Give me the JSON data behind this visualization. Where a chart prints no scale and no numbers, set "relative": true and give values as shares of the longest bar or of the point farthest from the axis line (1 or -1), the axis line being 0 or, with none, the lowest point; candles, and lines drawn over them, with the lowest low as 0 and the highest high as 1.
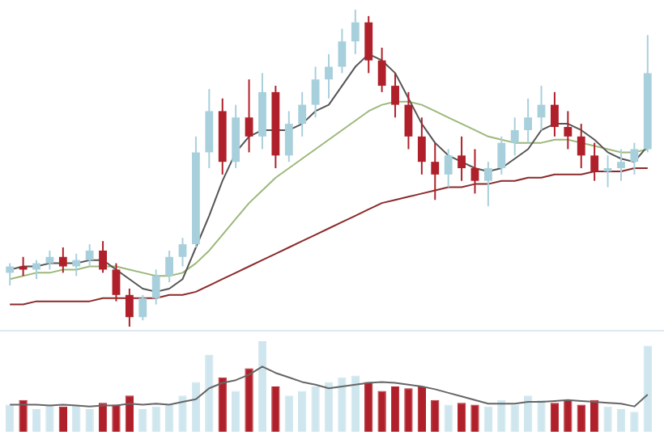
{
  "chart_data": [
    {
      "type": "candlestick",
      "relative": true,
      "tick_labels": false,
      "categories": [
        null,
        null,
        null,
        null,
        null,
        null,
        null,
        null,
        null,
        null,
        null,
        null,
        null,
        null,
        null,
        null,
        null,
        null,
        null,
        null,
        null,
        null,
        null,
        null,
        null,
        null,
        null,
        null,
        null,
        null,
        null,
        null,
        null,
        null,
        null,
        null,
        null,
        null,
        null,
        null,
        null,
        null,
        null,
        null,
        null,
        null,
        null,
        null,
        null
      ],
      "ohlc": [
        [
          0.17,
          0.2,
          0.13,
          0.19
        ],
        [
          0.19,
          0.22,
          0.16,
          0.18
        ],
        [
          0.18,
          0.21,
          0.15,
          0.2
        ],
        [
          0.2,
          0.24,
          0.18,
          0.22
        ],
        [
          0.22,
          0.25,
          0.17,
          0.19
        ],
        [
          0.19,
          0.23,
          0.16,
          0.21
        ],
        [
          0.21,
          0.26,
          0.19,
          0.24
        ],
        [
          0.24,
          0.27,
          0.17,
          0.18
        ],
        [
          0.18,
          0.2,
          0.08,
          0.1
        ],
        [
          0.1,
          0.12,
          0.0,
          0.03
        ],
        [
          0.03,
          0.1,
          0.02,
          0.09
        ],
        [
          0.09,
          0.18,
          0.07,
          0.16
        ],
        [
          0.16,
          0.24,
          0.14,
          0.22
        ],
        [
          0.22,
          0.28,
          0.19,
          0.26
        ],
        [
          0.26,
          0.6,
          0.25,
          0.55
        ],
        [
          0.55,
          0.75,
          0.5,
          0.68
        ],
        [
          0.68,
          0.72,
          0.48,
          0.52
        ],
        [
          0.52,
          0.7,
          0.5,
          0.66
        ],
        [
          0.66,
          0.78,
          0.55,
          0.6
        ],
        [
          0.6,
          0.8,
          0.56,
          0.74
        ],
        [
          0.74,
          0.76,
          0.5,
          0.54
        ],
        [
          0.54,
          0.68,
          0.52,
          0.64
        ],
        [
          0.64,
          0.74,
          0.6,
          0.7
        ],
        [
          0.7,
          0.82,
          0.66,
          0.78
        ],
        [
          0.78,
          0.86,
          0.72,
          0.82
        ],
        [
          0.82,
          0.94,
          0.8,
          0.9
        ],
        [
          0.9,
          1.0,
          0.86,
          0.96
        ],
        [
          0.96,
          0.98,
          0.8,
          0.84
        ],
        [
          0.84,
          0.88,
          0.74,
          0.76
        ],
        [
          0.76,
          0.8,
          0.66,
          0.7
        ],
        [
          0.7,
          0.74,
          0.56,
          0.6
        ],
        [
          0.6,
          0.66,
          0.48,
          0.52
        ],
        [
          0.52,
          0.58,
          0.4,
          0.48
        ],
        [
          0.48,
          0.56,
          0.44,
          0.54
        ],
        [
          0.54,
          0.6,
          0.46,
          0.5
        ],
        [
          0.5,
          0.56,
          0.42,
          0.46
        ],
        [
          0.46,
          0.52,
          0.38,
          0.5
        ],
        [
          0.5,
          0.6,
          0.48,
          0.58
        ],
        [
          0.58,
          0.66,
          0.54,
          0.62
        ],
        [
          0.62,
          0.72,
          0.58,
          0.66
        ],
        [
          0.66,
          0.76,
          0.62,
          0.7
        ],
        [
          0.7,
          0.74,
          0.6,
          0.63
        ],
        [
          0.63,
          0.68,
          0.56,
          0.6
        ],
        [
          0.6,
          0.64,
          0.5,
          0.54
        ],
        [
          0.54,
          0.58,
          0.46,
          0.49
        ],
        [
          0.49,
          0.54,
          0.44,
          0.5
        ],
        [
          0.5,
          0.56,
          0.46,
          0.52
        ],
        [
          0.52,
          0.58,
          0.48,
          0.56
        ],
        [
          0.56,
          0.92,
          0.55,
          0.8
        ]
      ],
      "colors": [
        "#a8d0dc",
        "#b0202a",
        "#a8d0dc",
        "#a8d0dc",
        "#b0202a",
        "#a8d0dc",
        "#a8d0dc",
        "#b0202a",
        "#b0202a",
        "#b0202a",
        "#a8d0dc",
        "#a8d0dc",
        "#a8d0dc",
        "#a8d0dc",
        "#a8d0dc",
        "#a8d0dc",
        "#b0202a",
        "#a8d0dc",
        "#b0202a",
        "#a8d0dc",
        "#b0202a",
        "#a8d0dc",
        "#a8d0dc",
        "#a8d0dc",
        "#a8d0dc",
        "#a8d0dc",
        "#a8d0dc",
        "#b0202a",
        "#b0202a",
        "#b0202a",
        "#b0202a",
        "#b0202a",
        "#b0202a",
        "#a8d0dc",
        "#b0202a",
        "#b0202a",
        "#a8d0dc",
        "#a8d0dc",
        "#a8d0dc",
        "#a8d0dc",
        "#a8d0dc",
        "#b0202a",
        "#b0202a",
        "#b0202a",
        "#b0202a",
        "#a8d0dc",
        "#a8d0dc",
        "#a8d0dc",
        "#a8d0dc"
      ],
      "series": [
        {
          "type": "line",
          "color": "#555555",
          "values": [
            0.18,
            0.19,
            0.19,
            0.2,
            0.2,
            0.2,
            0.21,
            0.21,
            0.18,
            0.15,
            0.12,
            0.11,
            0.12,
            0.15,
            0.25,
            0.35,
            0.46,
            0.55,
            0.6,
            0.62,
            0.62,
            0.62,
            0.64,
            0.68,
            0.7,
            0.76,
            0.82,
            0.86,
            0.84,
            0.8,
            0.72,
            0.64,
            0.58,
            0.54,
            0.52,
            0.5,
            0.49,
            0.5,
            0.53,
            0.56,
            0.62,
            0.64,
            0.64,
            0.62,
            0.59,
            0.55,
            0.53,
            0.52,
            0.57
          ]
        },
        {
          "type": "line",
          "color": "#9cb87a",
          "values": [
            0.15,
            0.16,
            0.17,
            0.17,
            0.18,
            0.18,
            0.19,
            0.19,
            0.19,
            0.18,
            0.17,
            0.16,
            0.16,
            0.17,
            0.2,
            0.24,
            0.29,
            0.34,
            0.39,
            0.43,
            0.47,
            0.5,
            0.53,
            0.56,
            0.59,
            0.62,
            0.65,
            0.68,
            0.7,
            0.71,
            0.71,
            0.7,
            0.68,
            0.66,
            0.64,
            0.62,
            0.6,
            0.59,
            0.58,
            0.58,
            0.58,
            0.59,
            0.59,
            0.58,
            0.57,
            0.56,
            0.55,
            0.55,
            0.56
          ]
        },
        {
          "type": "line",
          "color": "#8b2a2a",
          "values": [
            0.07,
            0.07,
            0.08,
            0.08,
            0.08,
            0.08,
            0.08,
            0.09,
            0.09,
            0.09,
            0.09,
            0.09,
            0.1,
            0.1,
            0.11,
            0.13,
            0.15,
            0.17,
            0.19,
            0.21,
            0.23,
            0.25,
            0.27,
            0.29,
            0.31,
            0.33,
            0.35,
            0.37,
            0.39,
            0.4,
            0.41,
            0.42,
            0.43,
            0.44,
            0.44,
            0.45,
            0.45,
            0.46,
            0.46,
            0.47,
            0.47,
            0.48,
            0.48,
            0.48,
            0.49,
            0.49,
            0.49,
            0.5,
            0.5
          ]
        }
      ]
    },
    {
      "type": "bar",
      "relative": true,
      "tick_labels": false,
      "categories": [
        null,
        null,
        null,
        null,
        null,
        null,
        null,
        null,
        null,
        null,
        null,
        null,
        null,
        null,
        null,
        null,
        null,
        null,
        null,
        null,
        null,
        null,
        null,
        null,
        null,
        null,
        null,
        null,
        null,
        null,
        null,
        null,
        null,
        null,
        null,
        null,
        null,
        null,
        null,
        null,
        null,
        null,
        null,
        null,
        null,
        null,
        null,
        null,
        null
      ],
      "series": [
        {
          "type": "bar",
          "values": [
            0.3,
            0.35,
            0.25,
            0.3,
            0.28,
            0.3,
            0.25,
            0.32,
            0.3,
            0.4,
            0.25,
            0.28,
            0.3,
            0.4,
            0.55,
            0.85,
            0.6,
            0.45,
            0.7,
            1.0,
            0.5,
            0.4,
            0.45,
            0.5,
            0.55,
            0.6,
            0.62,
            0.55,
            0.45,
            0.5,
            0.48,
            0.5,
            0.35,
            0.3,
            0.32,
            0.3,
            0.28,
            0.35,
            0.3,
            0.4,
            0.35,
            0.32,
            0.35,
            0.3,
            0.35,
            0.28,
            0.25,
            0.22,
            0.95
          ],
          "colors": [
            "#cfe6ee",
            "#b0202a",
            "#cfe6ee",
            "#cfe6ee",
            "#b0202a",
            "#cfe6ee",
            "#cfe6ee",
            "#b0202a",
            "#b0202a",
            "#b0202a",
            "#cfe6ee",
            "#cfe6ee",
            "#cfe6ee",
            "#cfe6ee",
            "#cfe6ee",
            "#cfe6ee",
            "#b0202a",
            "#cfe6ee",
            "#b0202a",
            "#cfe6ee",
            "#b0202a",
            "#cfe6ee",
            "#cfe6ee",
            "#cfe6ee",
            "#cfe6ee",
            "#cfe6ee",
            "#cfe6ee",
            "#b0202a",
            "#b0202a",
            "#b0202a",
            "#b0202a",
            "#b0202a",
            "#b0202a",
            "#cfe6ee",
            "#b0202a",
            "#b0202a",
            "#cfe6ee",
            "#cfe6ee",
            "#cfe6ee",
            "#cfe6ee",
            "#cfe6ee",
            "#b0202a",
            "#b0202a",
            "#b0202a",
            "#b0202a",
            "#cfe6ee",
            "#cfe6ee",
            "#cfe6ee",
            "#cfe6ee"
          ]
        },
        {
          "type": "line",
          "color": "#666666",
          "values": [
            0.3,
            0.3,
            0.3,
            0.29,
            0.3,
            0.29,
            0.28,
            0.29,
            0.29,
            0.31,
            0.3,
            0.31,
            0.3,
            0.33,
            0.36,
            0.48,
            0.54,
            0.57,
            0.63,
            0.72,
            0.65,
            0.6,
            0.55,
            0.52,
            0.48,
            0.5,
            0.52,
            0.54,
            0.55,
            0.54,
            0.52,
            0.5,
            0.47,
            0.43,
            0.39,
            0.35,
            0.31,
            0.31,
            0.31,
            0.33,
            0.33,
            0.34,
            0.35,
            0.34,
            0.33,
            0.32,
            0.31,
            0.28,
            0.41
          ]
        }
      ]
    }
  ]
}
